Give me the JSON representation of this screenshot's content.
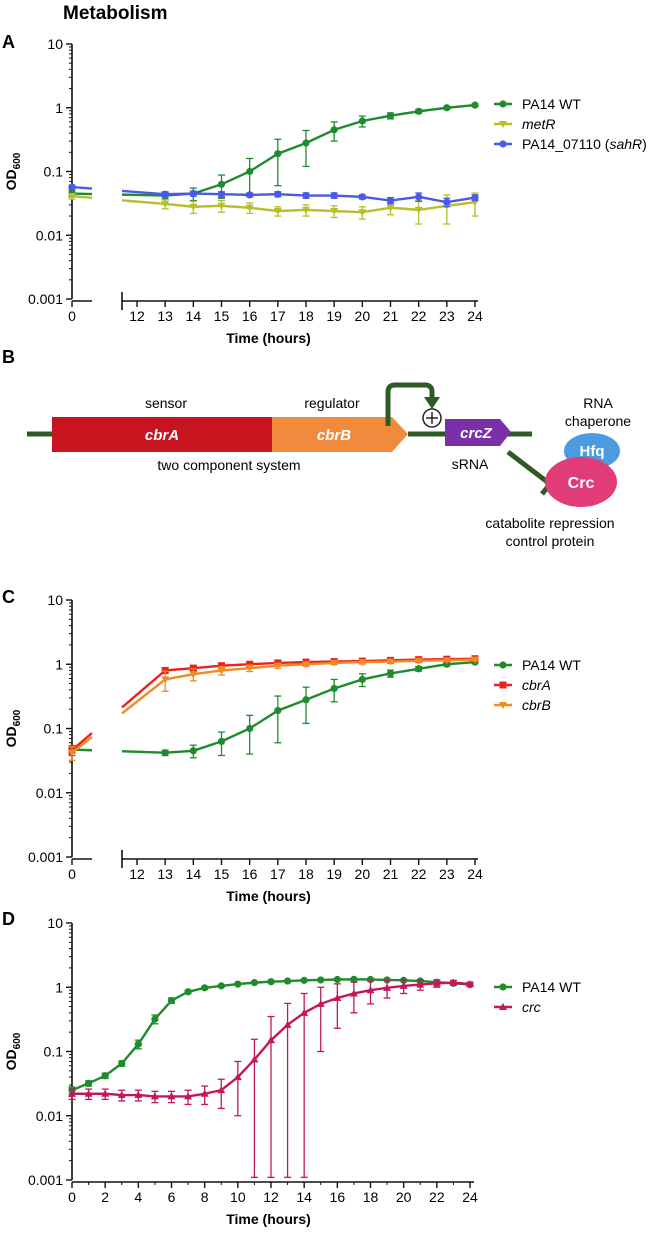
{
  "page_title": "Metabolism",
  "chart_data": [
    {
      "panel": "A",
      "type": "line",
      "ylabel": "OD",
      "ylabel_sub": "600",
      "xlabel": "Time (hours)",
      "yscale": "log",
      "ylim": [
        0.001,
        10
      ],
      "yticks": [
        "0.001",
        "0.01",
        "0.1",
        "1",
        "10"
      ],
      "xticks": [
        0,
        12,
        13,
        14,
        15,
        16,
        17,
        18,
        19,
        20,
        21,
        22,
        23,
        24
      ],
      "axis_break": [
        0,
        12
      ],
      "grid": false,
      "legend_position": "right",
      "series": [
        {
          "name": "PA14 WT",
          "name_suffix": "",
          "italic": false,
          "color": "#1e8c2e",
          "marker": "circle",
          "x": [
            0,
            13,
            14,
            15,
            16,
            17,
            18,
            19,
            20,
            21,
            22,
            23,
            24
          ],
          "y": [
            0.045,
            0.042,
            0.045,
            0.063,
            0.1,
            0.19,
            0.28,
            0.45,
            0.62,
            0.75,
            0.88,
            1.0,
            1.1
          ],
          "err": [
            0.005,
            0.005,
            0.01,
            0.025,
            0.06,
            0.13,
            0.16,
            0.15,
            0.12,
            0.08,
            0.06,
            0.05,
            0.05
          ]
        },
        {
          "name": "metR",
          "name_suffix": "",
          "italic": true,
          "color": "#b6be28",
          "marker": "triangle-down",
          "x": [
            0,
            13,
            14,
            15,
            16,
            17,
            18,
            19,
            20,
            21,
            22,
            23,
            24
          ],
          "y": [
            0.041,
            0.031,
            0.028,
            0.029,
            0.027,
            0.024,
            0.025,
            0.024,
            0.023,
            0.027,
            0.025,
            0.029,
            0.033
          ],
          "err": [
            0.004,
            0.005,
            0.006,
            0.006,
            0.005,
            0.004,
            0.005,
            0.005,
            0.005,
            0.006,
            0.01,
            0.014,
            0.013
          ]
        },
        {
          "name": "PA14_07110 (",
          "name_suffix": "sahR)",
          "italic": false,
          "color": "#4b5ae6",
          "marker": "circle",
          "x": [
            0,
            13,
            14,
            15,
            16,
            17,
            18,
            19,
            20,
            21,
            22,
            23,
            24
          ],
          "y": [
            0.057,
            0.044,
            0.045,
            0.044,
            0.043,
            0.044,
            0.042,
            0.042,
            0.04,
            0.035,
            0.04,
            0.033,
            0.039
          ],
          "err": [
            0.004,
            0.004,
            0.004,
            0.004,
            0.003,
            0.004,
            0.004,
            0.004,
            0.003,
            0.004,
            0.006,
            0.005,
            0.004
          ]
        }
      ]
    },
    {
      "panel": "C",
      "type": "line",
      "ylabel": "OD",
      "ylabel_sub": "600",
      "xlabel": "Time (hours)",
      "yscale": "log",
      "ylim": [
        0.001,
        10
      ],
      "yticks": [
        "0.001",
        "0.01",
        "0.1",
        "1",
        "10"
      ],
      "xticks": [
        0,
        12,
        13,
        14,
        15,
        16,
        17,
        18,
        19,
        20,
        21,
        22,
        23,
        24
      ],
      "axis_break": [
        0,
        12
      ],
      "grid": false,
      "legend_position": "right",
      "series": [
        {
          "name": "PA14 WT",
          "name_suffix": "",
          "italic": false,
          "color": "#1e8c2e",
          "marker": "circle",
          "x": [
            0,
            13,
            14,
            15,
            16,
            17,
            18,
            19,
            20,
            21,
            22,
            23,
            24
          ],
          "y": [
            0.047,
            0.042,
            0.045,
            0.063,
            0.1,
            0.19,
            0.28,
            0.42,
            0.58,
            0.72,
            0.85,
            1.0,
            1.08
          ],
          "err": [
            0.005,
            0.004,
            0.01,
            0.025,
            0.06,
            0.13,
            0.16,
            0.16,
            0.13,
            0.09,
            0.07,
            0.06,
            0.05
          ]
        },
        {
          "name": "cbrA",
          "name_suffix": "",
          "italic": true,
          "color": "#e8231e",
          "marker": "square",
          "x": [
            0,
            13,
            14,
            15,
            16,
            17,
            18,
            19,
            20,
            21,
            22,
            23,
            24
          ],
          "y": [
            0.046,
            0.8,
            0.87,
            0.95,
            1.0,
            1.05,
            1.08,
            1.1,
            1.12,
            1.15,
            1.18,
            1.2,
            1.22
          ],
          "err": [
            0.008,
            0.08,
            0.07,
            0.06,
            0.05,
            0.05,
            0.05,
            0.05,
            0.05,
            0.05,
            0.05,
            0.05,
            0.05
          ]
        },
        {
          "name": "cbrB",
          "name_suffix": "",
          "italic": true,
          "color": "#f08a25",
          "marker": "triangle-down",
          "x": [
            0,
            13,
            14,
            15,
            16,
            17,
            18,
            19,
            20,
            21,
            22,
            23,
            24
          ],
          "y": [
            0.042,
            0.58,
            0.7,
            0.8,
            0.87,
            0.95,
            1.0,
            1.05,
            1.08,
            1.1,
            1.13,
            1.15,
            1.18
          ],
          "err": [
            0.01,
            0.2,
            0.15,
            0.12,
            0.1,
            0.08,
            0.07,
            0.06,
            0.06,
            0.05,
            0.05,
            0.05,
            0.05
          ]
        }
      ]
    },
    {
      "panel": "D",
      "type": "line",
      "ylabel": "OD",
      "ylabel_sub": "600",
      "xlabel": "Time (hours)",
      "yscale": "log",
      "ylim": [
        0.001,
        10
      ],
      "yticks": [
        "0.001",
        "0.01",
        "0.1",
        "1",
        "10"
      ],
      "xticks": [
        0,
        2,
        4,
        6,
        8,
        10,
        12,
        14,
        16,
        18,
        20,
        22,
        24
      ],
      "grid": false,
      "legend_position": "right",
      "series": [
        {
          "name": "PA14 WT",
          "name_suffix": "",
          "italic": false,
          "color": "#1e8c2e",
          "marker": "circle",
          "x": [
            0,
            1,
            2,
            3,
            4,
            5,
            6,
            7,
            8,
            9,
            10,
            11,
            12,
            13,
            14,
            15,
            16,
            17,
            18,
            19,
            20,
            21,
            22,
            23,
            24
          ],
          "y": [
            0.025,
            0.032,
            0.042,
            0.065,
            0.13,
            0.32,
            0.62,
            0.85,
            0.98,
            1.05,
            1.12,
            1.18,
            1.22,
            1.25,
            1.28,
            1.3,
            1.32,
            1.33,
            1.32,
            1.3,
            1.28,
            1.25,
            1.2,
            1.15,
            1.1
          ],
          "err": [
            0.003,
            0.003,
            0.004,
            0.006,
            0.02,
            0.05,
            0.06,
            0.05,
            0.04,
            0.04,
            0.04,
            0.04,
            0.04,
            0.04,
            0.04,
            0.04,
            0.04,
            0.04,
            0.04,
            0.04,
            0.04,
            0.04,
            0.04,
            0.04,
            0.04
          ]
        },
        {
          "name": "crc",
          "name_suffix": "",
          "italic": true,
          "color": "#c2185b",
          "marker": "triangle-up",
          "x": [
            0,
            1,
            2,
            3,
            4,
            5,
            6,
            7,
            8,
            9,
            10,
            11,
            12,
            13,
            14,
            15,
            16,
            17,
            18,
            19,
            20,
            21,
            22,
            23,
            24
          ],
          "y": [
            0.022,
            0.022,
            0.022,
            0.021,
            0.021,
            0.02,
            0.02,
            0.02,
            0.022,
            0.025,
            0.04,
            0.075,
            0.15,
            0.26,
            0.4,
            0.55,
            0.68,
            0.8,
            0.9,
            0.98,
            1.05,
            1.1,
            1.15,
            1.18,
            1.12
          ],
          "err": [
            0.004,
            0.004,
            0.004,
            0.004,
            0.004,
            0.004,
            0.004,
            0.005,
            0.007,
            0.012,
            0.03,
            0.08,
            0.2,
            0.3,
            0.4,
            0.45,
            0.45,
            0.4,
            0.35,
            0.3,
            0.25,
            0.2,
            0.15,
            0.1,
            0.08
          ]
        }
      ]
    }
  ],
  "diagram": {
    "panel": "B",
    "genes": {
      "cbrA": "cbrA",
      "cbrB": "cbrB",
      "crcZ": "crcZ"
    },
    "labels": {
      "sensor": "sensor",
      "regulator": "regulator",
      "two_component": "two component system",
      "srna": "sRNA",
      "rna_chaperone_1": "RNA",
      "rna_chaperone_2": "chaperone",
      "hfq": "Hfq",
      "crc": "Crc",
      "catabolite_1": "catabolite repression",
      "catabolite_2": "control protein"
    },
    "colors": {
      "cbrA": "#c8141e",
      "cbrB": "#f08a3c",
      "crcZ": "#7b2fa8",
      "line": "#2f5a27",
      "hfq": "#4a9be0",
      "crc": "#e23c78"
    }
  }
}
